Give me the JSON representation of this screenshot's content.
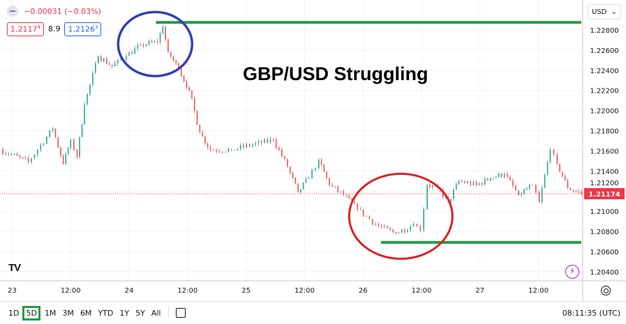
{
  "legend": {
    "change": "−0.00031 (−0.03%)",
    "sell": "1.2117",
    "sell_sup": "4",
    "spread": "8.9",
    "buy": "1.2126",
    "buy_sup": "3"
  },
  "currency": "USD",
  "annotation_title": "GBP/USD Struggling",
  "timeframes": [
    "1D",
    "5D",
    "1M",
    "3M",
    "6M",
    "YTD",
    "1Y",
    "5Y",
    "All"
  ],
  "selected_timeframe": "5D",
  "clock": "08:11:35 (UTC)",
  "logo": "TV",
  "colors": {
    "up": "#26a69a",
    "down": "#ef5350",
    "price_tag": "#f23645",
    "resistance_line": "#22a045",
    "high_circle": "#3340b8",
    "low_circle": "#e02020"
  },
  "chart_data": {
    "type": "candlestick",
    "symbol": "GBP/USD",
    "y_ticks": [
      "1.22800",
      "1.22600",
      "1.22400",
      "1.22200",
      "1.22000",
      "1.21800",
      "1.21600",
      "1.21400",
      "1.21200",
      "1.21000",
      "1.20800",
      "1.20600",
      "1.20400"
    ],
    "ylim": [
      1.2032,
      1.229
    ],
    "x_ticks": [
      {
        "t": "23 00:00",
        "label": "23"
      },
      {
        "t": "23 12:00",
        "label": "12:00"
      },
      {
        "t": "24 00:00",
        "label": "24"
      },
      {
        "t": "24 12:00",
        "label": "12:00"
      },
      {
        "t": "25 00:00",
        "label": "25"
      },
      {
        "t": "25 12:00",
        "label": "12:00"
      },
      {
        "t": "26 00:00",
        "label": "26"
      },
      {
        "t": "26 12:00",
        "label": "12:00"
      },
      {
        "t": "27 00:00",
        "label": "27"
      },
      {
        "t": "27 12:00",
        "label": "12:00"
      }
    ],
    "xlim": [
      "22 21:30",
      "27 21:05"
    ],
    "last_price": 1.21174,
    "last_price_label": "1.21174",
    "price_path": [
      [
        "22 21:30",
        1.2161
      ],
      [
        "23 03:20",
        1.2149
      ],
      [
        "23 08:20",
        1.2182
      ],
      [
        "23 10:30",
        1.2147
      ],
      [
        "23 12:00",
        1.2171
      ],
      [
        "23 13:20",
        1.2154
      ],
      [
        "23 14:50",
        1.2206
      ],
      [
        "23 17:40",
        1.2254
      ],
      [
        "23 20:30",
        1.2244
      ],
      [
        "23 23:25",
        1.2254
      ],
      [
        "24 02:20",
        1.2265
      ],
      [
        "24 05:50",
        1.2268
      ],
      [
        "24 06:55",
        1.2283
      ],
      [
        "24 08:00",
        1.2258
      ],
      [
        "24 10:10",
        1.2241
      ],
      [
        "24 12:20",
        1.222
      ],
      [
        "24 14:30",
        1.2178
      ],
      [
        "24 16:40",
        1.2161
      ],
      [
        "24 21:00",
        1.2161
      ],
      [
        "25 01:20",
        1.2166
      ],
      [
        "25 05:35",
        1.2171
      ],
      [
        "25 08:30",
        1.2144
      ],
      [
        "25 10:40",
        1.2119
      ],
      [
        "25 12:50",
        1.2133
      ],
      [
        "25 14:55",
        1.2151
      ],
      [
        "25 17:05",
        1.2126
      ],
      [
        "25 20:00",
        1.2116
      ],
      [
        "25 22:50",
        1.2102
      ],
      [
        "26 03:10",
        1.2085
      ],
      [
        "26 06:45",
        1.2078
      ],
      [
        "26 10:20",
        1.2087
      ],
      [
        "26 11:45",
        1.2081
      ],
      [
        "26 13:10",
        1.2126
      ],
      [
        "26 15:20",
        1.2123
      ],
      [
        "26 17:30",
        1.2109
      ],
      [
        "26 19:40",
        1.213
      ],
      [
        "26 23:15",
        1.2126
      ],
      [
        "27 02:10",
        1.2133
      ],
      [
        "27 05:00",
        1.2137
      ],
      [
        "27 07:55",
        1.2116
      ],
      [
        "27 10:45",
        1.2126
      ],
      [
        "27 12:10",
        1.2109
      ],
      [
        "27 14:25",
        1.2161
      ],
      [
        "27 15:50",
        1.2147
      ],
      [
        "27 18:00",
        1.2123
      ],
      [
        "27 20:50",
        1.21174
      ]
    ],
    "annotations": {
      "resistance": {
        "price": 1.22875,
        "from": "24 05:30"
      },
      "support": {
        "price": 1.2069,
        "from": "26 03:40"
      },
      "high_circle_center": {
        "t": "24 05:20",
        "price": 1.2266
      },
      "low_circle_center": {
        "t": "26 07:45",
        "price": 1.2095
      }
    }
  }
}
